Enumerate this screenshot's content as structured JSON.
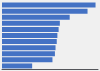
{
  "chart_data": {
    "type": "bar",
    "orientation": "horizontal",
    "values": [
      1520,
      1390,
      1100,
      940,
      920,
      900,
      890,
      870,
      860,
      820,
      490
    ],
    "color": "#4472c4",
    "xlim": [
      0,
      1560
    ],
    "grid": false,
    "tick_labels": false
  }
}
